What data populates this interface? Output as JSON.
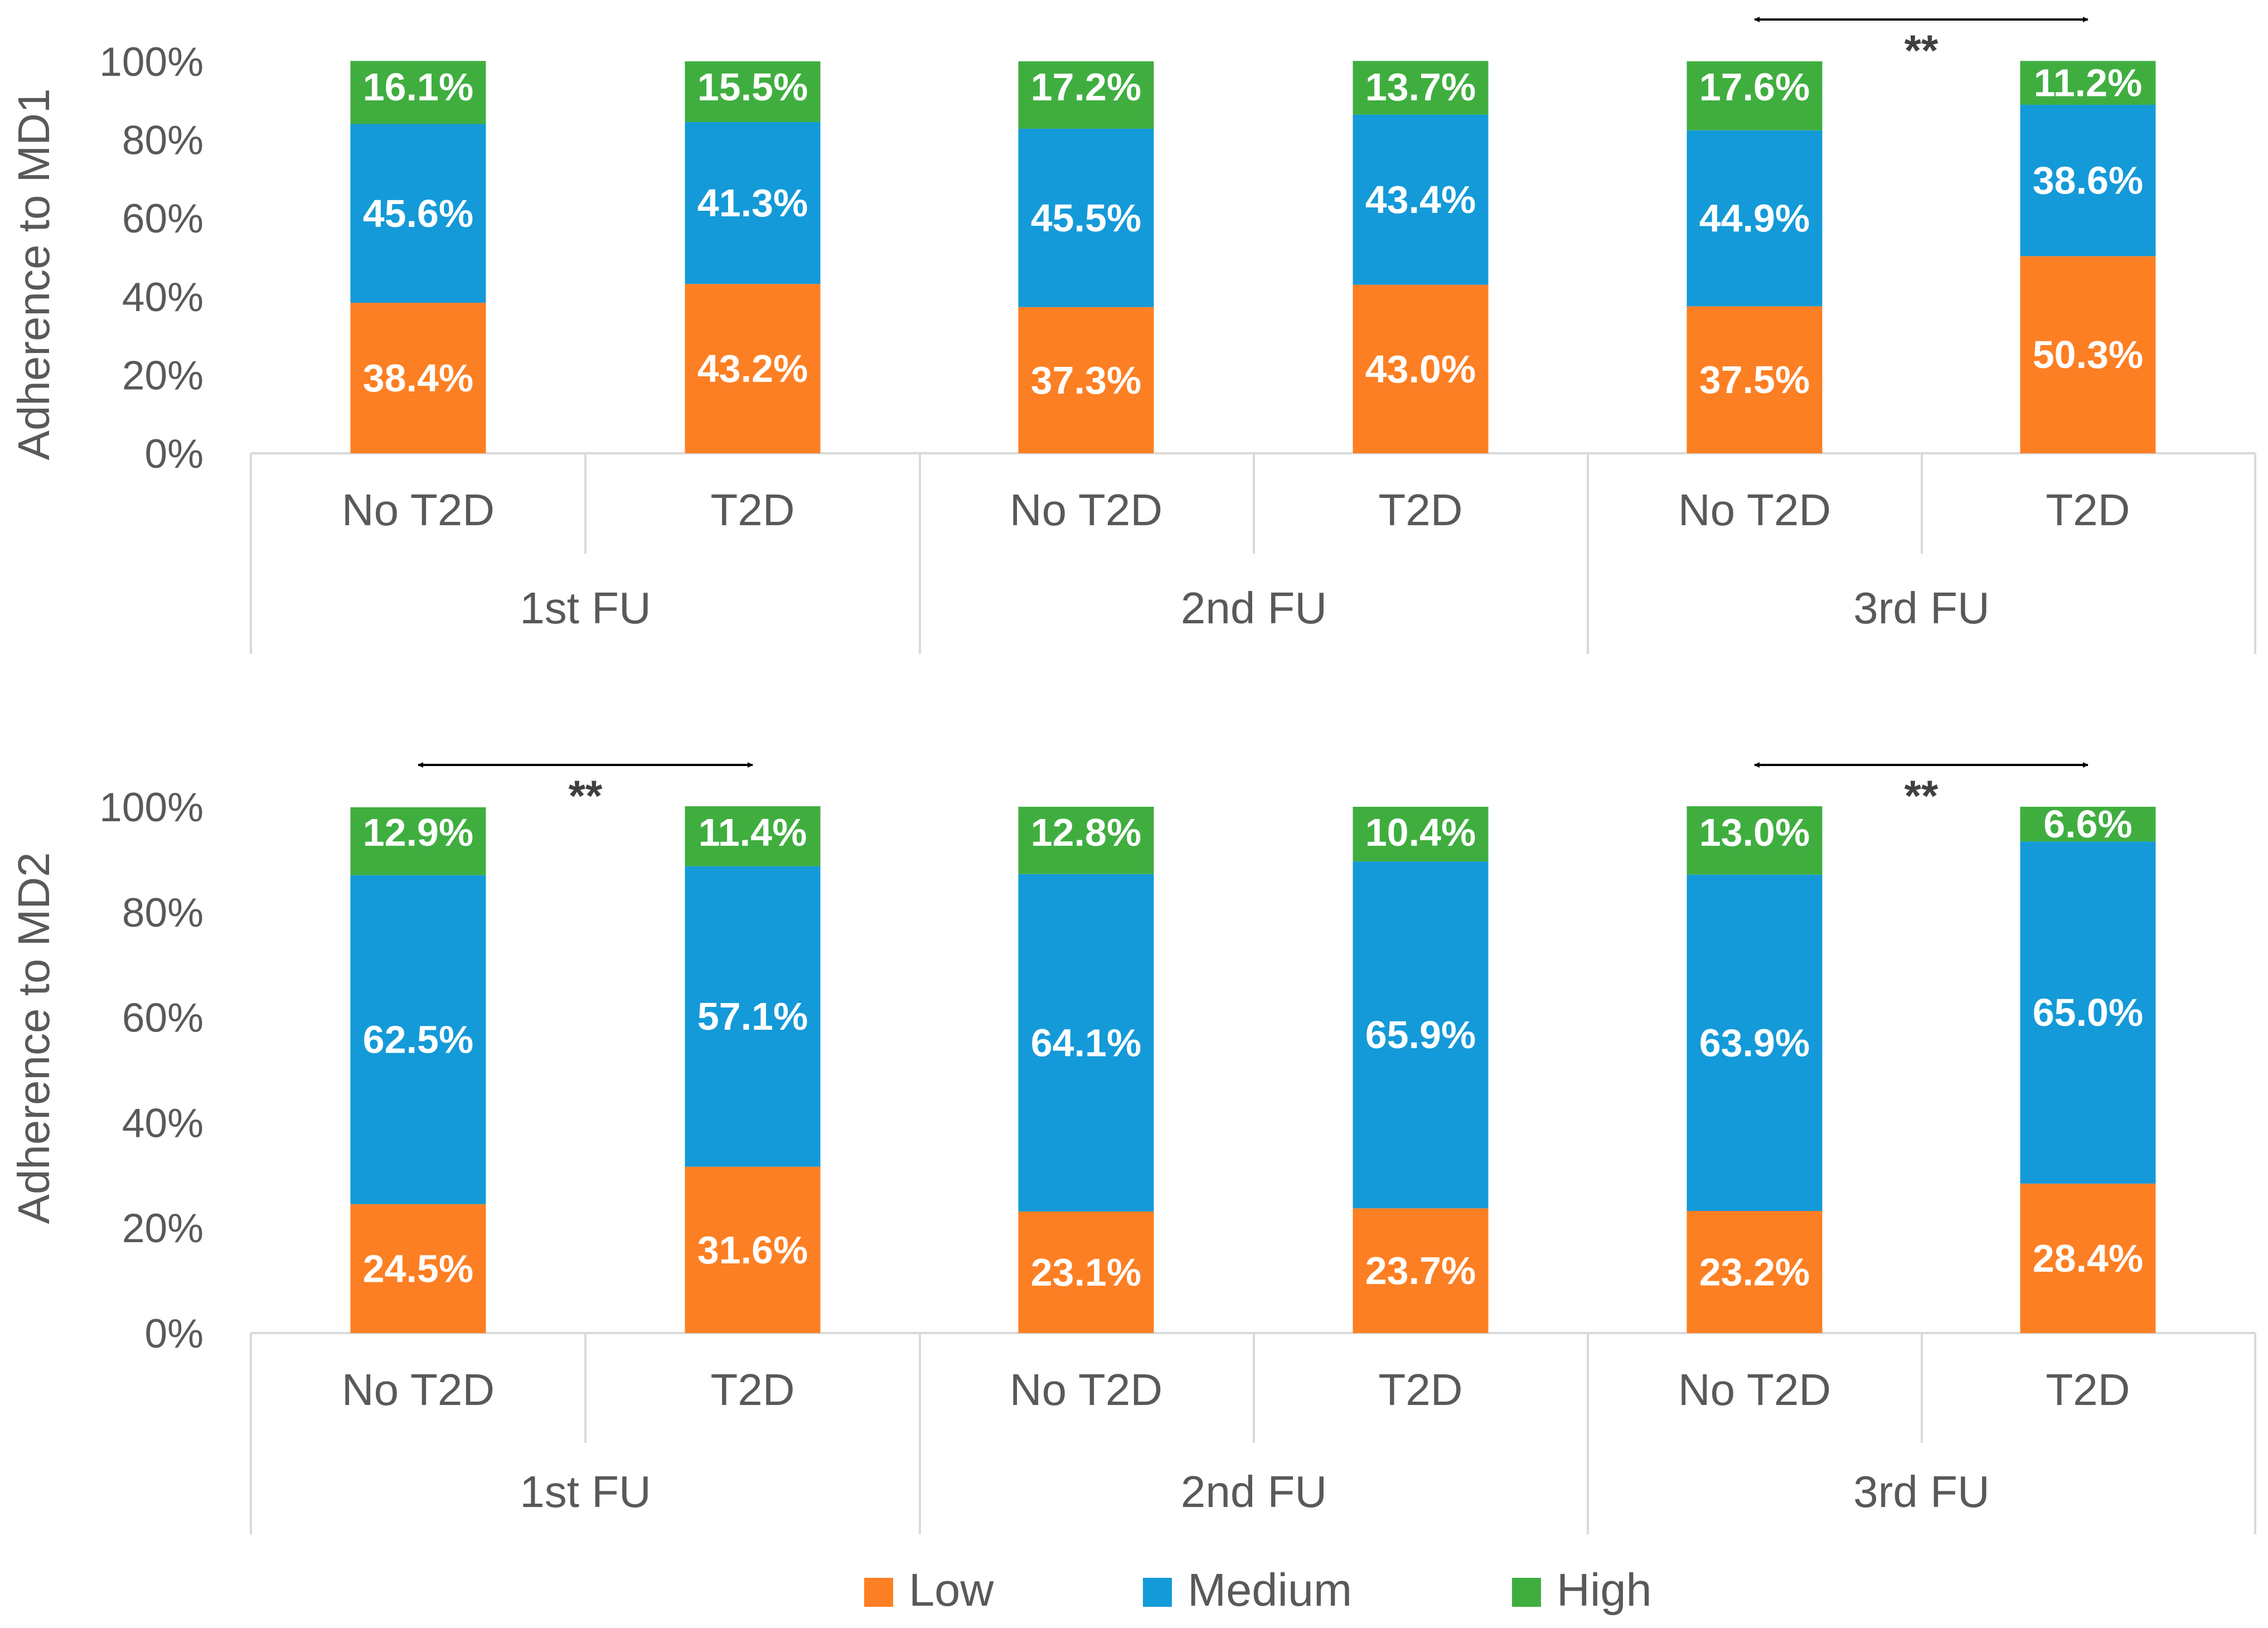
{
  "colors": {
    "low": "#FD7F23",
    "medium": "#149AD8",
    "high": "#3FAE3F",
    "axis": "#D9D9D9",
    "text": "#595959",
    "arrow": "#000000"
  },
  "legend": [
    {
      "key": "low",
      "label": "Low"
    },
    {
      "key": "medium",
      "label": "Medium"
    },
    {
      "key": "high",
      "label": "High"
    }
  ],
  "chart_data": [
    {
      "type": "bar",
      "stacked": true,
      "ylabel": "Adherence to MD1",
      "ylim": [
        0,
        100
      ],
      "yticks": [
        "0%",
        "20%",
        "40%",
        "60%",
        "80%",
        "100%"
      ],
      "groups": [
        "1st FU",
        "2nd FU",
        "3rd FU"
      ],
      "categories": [
        "No T2D",
        "T2D",
        "No T2D",
        "T2D",
        "No T2D",
        "T2D"
      ],
      "series": [
        {
          "name": "Low",
          "values": [
            38.4,
            43.2,
            37.3,
            43.0,
            37.5,
            50.3
          ],
          "labels": [
            "38.4%",
            "43.2%",
            "37.3%",
            "43.0%",
            "37.5%",
            "50.3%"
          ]
        },
        {
          "name": "Medium",
          "values": [
            45.6,
            41.3,
            45.5,
            43.4,
            44.9,
            38.6
          ],
          "labels": [
            "45.6%",
            "41.3%",
            "45.5%",
            "43.4%",
            "44.9%",
            "38.6%"
          ]
        },
        {
          "name": "High",
          "values": [
            16.1,
            15.5,
            17.2,
            13.7,
            17.6,
            11.2
          ],
          "labels": [
            "16.1%",
            "15.5%",
            "17.2%",
            "13.7%",
            "17.6%",
            "11.2%"
          ]
        }
      ],
      "significance": [
        {
          "group": 2,
          "label": "**"
        }
      ]
    },
    {
      "type": "bar",
      "stacked": true,
      "ylabel": "Adherence to MD2",
      "ylim": [
        0,
        100
      ],
      "yticks": [
        "0%",
        "20%",
        "40%",
        "60%",
        "80%",
        "100%"
      ],
      "groups": [
        "1st FU",
        "2nd FU",
        "3rd FU"
      ],
      "categories": [
        "No T2D",
        "T2D",
        "No T2D",
        "T2D",
        "No T2D",
        "T2D"
      ],
      "series": [
        {
          "name": "Low",
          "values": [
            24.5,
            31.6,
            23.1,
            23.7,
            23.2,
            28.4
          ],
          "labels": [
            "24.5%",
            "31.6%",
            "23.1%",
            "23.7%",
            "23.2%",
            "28.4%"
          ]
        },
        {
          "name": "Medium",
          "values": [
            62.5,
            57.1,
            64.1,
            65.9,
            63.9,
            65.0
          ],
          "labels": [
            "62.5%",
            "57.1%",
            "64.1%",
            "65.9%",
            "63.9%",
            "65.0%"
          ]
        },
        {
          "name": "High",
          "values": [
            12.9,
            11.4,
            12.8,
            10.4,
            13.0,
            6.6
          ],
          "labels": [
            "12.9%",
            "11.4%",
            "12.8%",
            "10.4%",
            "13.0%",
            "6.6%"
          ]
        }
      ],
      "significance": [
        {
          "group": 0,
          "label": "**"
        },
        {
          "group": 2,
          "label": "**"
        }
      ]
    }
  ]
}
